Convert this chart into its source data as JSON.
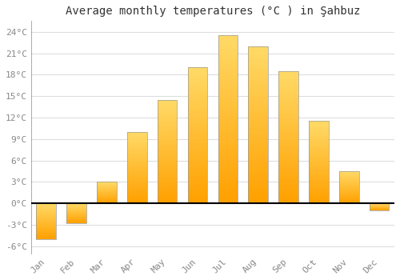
{
  "months": [
    "Jan",
    "Feb",
    "Mar",
    "Apr",
    "May",
    "Jun",
    "Jul",
    "Aug",
    "Sep",
    "Oct",
    "Nov",
    "Dec"
  ],
  "values": [
    -5.0,
    -2.8,
    3.0,
    10.0,
    14.5,
    19.0,
    23.5,
    22.0,
    18.5,
    11.5,
    4.5,
    -1.0
  ],
  "bar_color_top": "#FFD966",
  "bar_color_bottom": "#FFA000",
  "bar_edge_color": "#999999",
  "title": "Average monthly temperatures (°C ) in Şahbuz",
  "ylim": [
    -7,
    25.5
  ],
  "yticks": [
    -6,
    -3,
    0,
    3,
    6,
    9,
    12,
    15,
    18,
    21,
    24
  ],
  "ytick_labels": [
    "-6°C",
    "-3°C",
    "0°C",
    "3°C",
    "6°C",
    "9°C",
    "12°C",
    "15°C",
    "18°C",
    "21°C",
    "24°C"
  ],
  "plot_bg_color": "#ffffff",
  "fig_bg_color": "#ffffff",
  "grid_color": "#dddddd",
  "title_fontsize": 10,
  "axis_fontsize": 8,
  "tick_color": "#888888",
  "zero_line_color": "#000000",
  "bar_width": 0.65
}
